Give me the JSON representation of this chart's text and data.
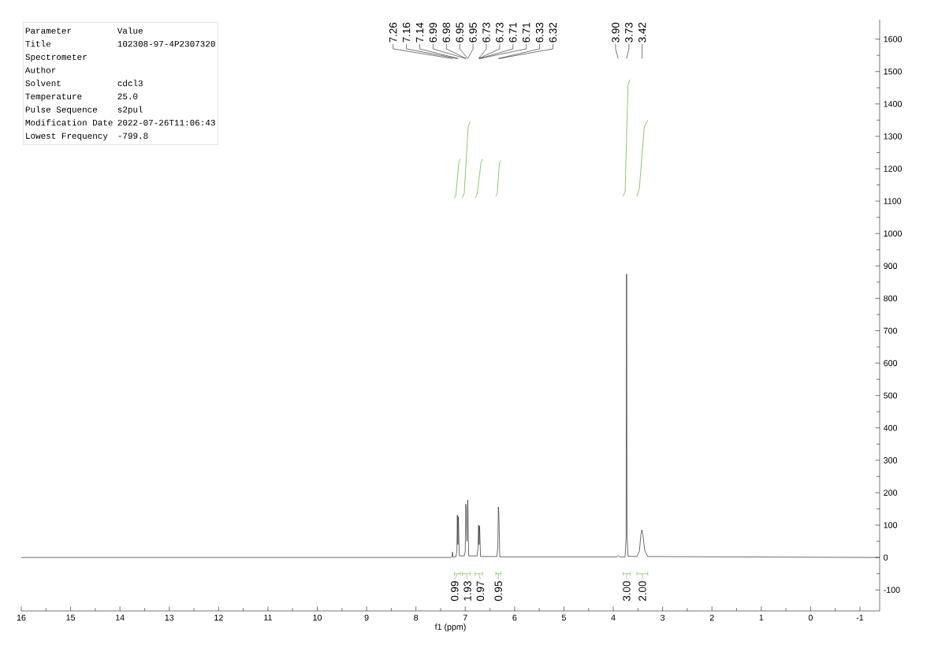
{
  "chart_data": [
    {
      "type": "line",
      "xlabel": "f1 (ppm)",
      "xlim": [
        16,
        -1.4
      ],
      "ylim": [
        -165,
        1660
      ],
      "xticks": [
        16,
        15,
        14,
        13,
        12,
        11,
        10,
        9,
        8,
        7,
        6,
        5,
        4,
        3,
        2,
        1,
        0,
        -1
      ],
      "yticks": [
        -100,
        0,
        100,
        200,
        300,
        400,
        500,
        600,
        700,
        800,
        900,
        1000,
        1100,
        1200,
        1300,
        1400,
        1500,
        1600
      ],
      "marker": "none",
      "line_style": "solid",
      "grid": false,
      "series": [
        {
          "color": "#222222",
          "x": [
            16,
            7.3,
            7.27,
            7.26,
            7.25,
            7.19,
            7.17,
            7.16,
            7.15,
            7.14,
            7.12,
            7.02,
            7.0,
            6.99,
            6.98,
            6.965,
            6.95,
            6.93,
            6.76,
            6.74,
            6.73,
            6.72,
            6.71,
            6.69,
            6.36,
            6.34,
            6.33,
            6.32,
            6.3,
            3.93,
            3.9,
            3.87,
            3.76,
            3.74,
            3.73,
            3.72,
            3.7,
            3.52,
            3.47,
            3.44,
            3.42,
            3.4,
            3.36,
            3.3,
            -1.4
          ],
          "values": [
            0,
            0,
            2,
            17,
            2,
            2,
            20,
            131,
            40,
            126,
            5,
            5,
            20,
            165,
            150,
            50,
            178,
            5,
            5,
            30,
            100,
            40,
            97,
            3,
            3,
            30,
            156,
            140,
            2,
            2,
            6,
            2,
            2,
            60,
            875,
            60,
            4,
            3,
            20,
            70,
            85,
            70,
            20,
            3,
            0
          ]
        },
        {
          "color": "#5aa832",
          "x": [
            7.22,
            7.19,
            7.16,
            7.13,
            7.1
          ],
          "values": [
            1110,
            1120,
            1170,
            1220,
            1230
          ]
        },
        {
          "color": "#5aa832",
          "x": [
            7.06,
            7.02,
            6.98,
            6.94,
            6.9
          ],
          "values": [
            1110,
            1125,
            1230,
            1330,
            1345
          ]
        },
        {
          "color": "#5aa832",
          "x": [
            6.8,
            6.76,
            6.72,
            6.68,
            6.65
          ],
          "values": [
            1110,
            1120,
            1170,
            1220,
            1230
          ]
        },
        {
          "color": "#5aa832",
          "x": [
            6.38,
            6.35,
            6.33,
            6.31,
            6.28
          ],
          "values": [
            1115,
            1125,
            1170,
            1215,
            1225
          ]
        },
        {
          "color": "#5aa832",
          "x": [
            3.8,
            3.76,
            3.73,
            3.7,
            3.66
          ],
          "values": [
            1115,
            1130,
            1300,
            1460,
            1475
          ]
        },
        {
          "color": "#5aa832",
          "x": [
            3.52,
            3.47,
            3.42,
            3.37,
            3.3
          ],
          "values": [
            1115,
            1140,
            1240,
            1330,
            1350
          ]
        }
      ],
      "annotations": [
        {
          "text": "7.26",
          "x": 7.26
        },
        {
          "text": "7.16",
          "x": 7.16
        },
        {
          "text": "7.14",
          "x": 7.14
        },
        {
          "text": "6.99",
          "x": 6.99
        },
        {
          "text": "6.98",
          "x": 6.98
        },
        {
          "text": "6.95",
          "x": 6.95
        },
        {
          "text": "6.95",
          "x": 6.95
        },
        {
          "text": "6.73",
          "x": 6.73
        },
        {
          "text": "6.73",
          "x": 6.73
        },
        {
          "text": "6.71",
          "x": 6.71
        },
        {
          "text": "6.71",
          "x": 6.71
        },
        {
          "text": "6.33",
          "x": 6.33
        },
        {
          "text": "6.32",
          "x": 6.32
        },
        {
          "text": "3.90",
          "x": 3.9
        },
        {
          "text": "3.73",
          "x": 3.73
        },
        {
          "text": "3.42",
          "x": 3.42
        },
        "0.99",
        "1.93",
        "0.97",
        "0.95",
        "3.00",
        "2.00"
      ]
    },
    {
      "type": "other",
      "annotations": [
        "Parameter",
        "Value",
        "Title",
        "102308-97-4P2307320",
        "Spectrometer",
        null,
        "Author",
        null,
        "Solvent",
        "cdcl3",
        "Temperature",
        "25.0",
        "Pulse Sequence",
        "s2pul",
        "Modification Date",
        "2022-07-26T11:06:43",
        "Lowest Frequency",
        "-799.8"
      ]
    }
  ]
}
